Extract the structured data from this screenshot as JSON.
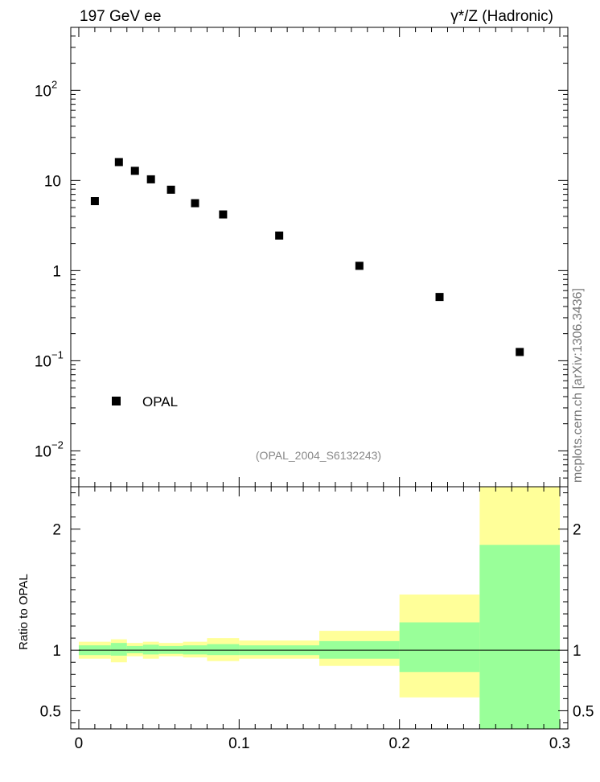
{
  "header": {
    "left": "197 GeV ee",
    "right": "γ*/Z (Hadronic)"
  },
  "side_label": "mcplots.cern.ch [arXiv:1306.3436]",
  "analysis_label": "(OPAL_2004_S6132243)",
  "legend": [
    {
      "label": "OPAL",
      "marker": "square",
      "color": "#000000"
    }
  ],
  "chart_data": [
    {
      "type": "scatter",
      "name": "main",
      "yscale": "log",
      "xlim": [
        -0.005,
        0.305
      ],
      "ylim": [
        0.004,
        500
      ],
      "y_ticks": [
        {
          "base": "10",
          "exp": "2",
          "value": 100
        },
        {
          "base": "10",
          "exp": "",
          "value": 10
        },
        {
          "base": "1",
          "exp": "",
          "value": 1
        },
        {
          "base": "10",
          "exp": "−1",
          "value": 0.1
        },
        {
          "base": "10",
          "exp": "−2",
          "value": 0.01
        }
      ],
      "series": [
        {
          "name": "OPAL",
          "color": "#000000",
          "x": [
            0.01,
            0.025,
            0.035,
            0.045,
            0.0575,
            0.0725,
            0.09,
            0.125,
            0.175,
            0.225,
            0.275
          ],
          "y": [
            5.9,
            16.0,
            12.8,
            10.3,
            7.9,
            5.6,
            4.2,
            2.45,
            1.13,
            0.51,
            0.125
          ]
        }
      ]
    },
    {
      "type": "area",
      "name": "ratio",
      "ylabel": "Ratio to OPAL",
      "xlim": [
        -0.005,
        0.305
      ],
      "ylim": [
        0.35,
        2.35
      ],
      "x_ticks": [
        "0",
        "0.1",
        "0.2",
        "0.3"
      ],
      "x_tick_values": [
        0,
        0.1,
        0.2,
        0.3
      ],
      "y_ticks": [
        "0.5",
        "1",
        "2"
      ],
      "y_tick_values": [
        0.5,
        1,
        2
      ],
      "reference_line": 1,
      "bins": [
        {
          "x": [
            0.0,
            0.02
          ],
          "outer": [
            0.93,
            1.07
          ],
          "inner": [
            0.96,
            1.04
          ]
        },
        {
          "x": [
            0.02,
            0.03
          ],
          "outer": [
            0.9,
            1.09
          ],
          "inner": [
            0.955,
            1.06
          ]
        },
        {
          "x": [
            0.03,
            0.04
          ],
          "outer": [
            0.95,
            1.06
          ],
          "inner": [
            0.975,
            1.035
          ]
        },
        {
          "x": [
            0.04,
            0.05
          ],
          "outer": [
            0.93,
            1.07
          ],
          "inner": [
            0.965,
            1.045
          ]
        },
        {
          "x": [
            0.05,
            0.065
          ],
          "outer": [
            0.95,
            1.06
          ],
          "inner": [
            0.97,
            1.035
          ]
        },
        {
          "x": [
            0.065,
            0.08
          ],
          "outer": [
            0.94,
            1.07
          ],
          "inner": [
            0.965,
            1.04
          ]
        },
        {
          "x": [
            0.08,
            0.1
          ],
          "outer": [
            0.91,
            1.1
          ],
          "inner": [
            0.96,
            1.05
          ]
        },
        {
          "x": [
            0.1,
            0.15
          ],
          "outer": [
            0.93,
            1.08
          ],
          "inner": [
            0.96,
            1.04
          ]
        },
        {
          "x": [
            0.15,
            0.2
          ],
          "outer": [
            0.87,
            1.16
          ],
          "inner": [
            0.93,
            1.075
          ]
        },
        {
          "x": [
            0.2,
            0.25
          ],
          "outer": [
            0.61,
            1.46
          ],
          "inner": [
            0.82,
            1.23
          ]
        },
        {
          "x": [
            0.25,
            0.3
          ],
          "outer": [
            0.35,
            2.35
          ],
          "inner": [
            0.35,
            1.87
          ]
        }
      ],
      "colors": {
        "outer": "#ffff99",
        "inner": "#99ff99"
      }
    }
  ]
}
